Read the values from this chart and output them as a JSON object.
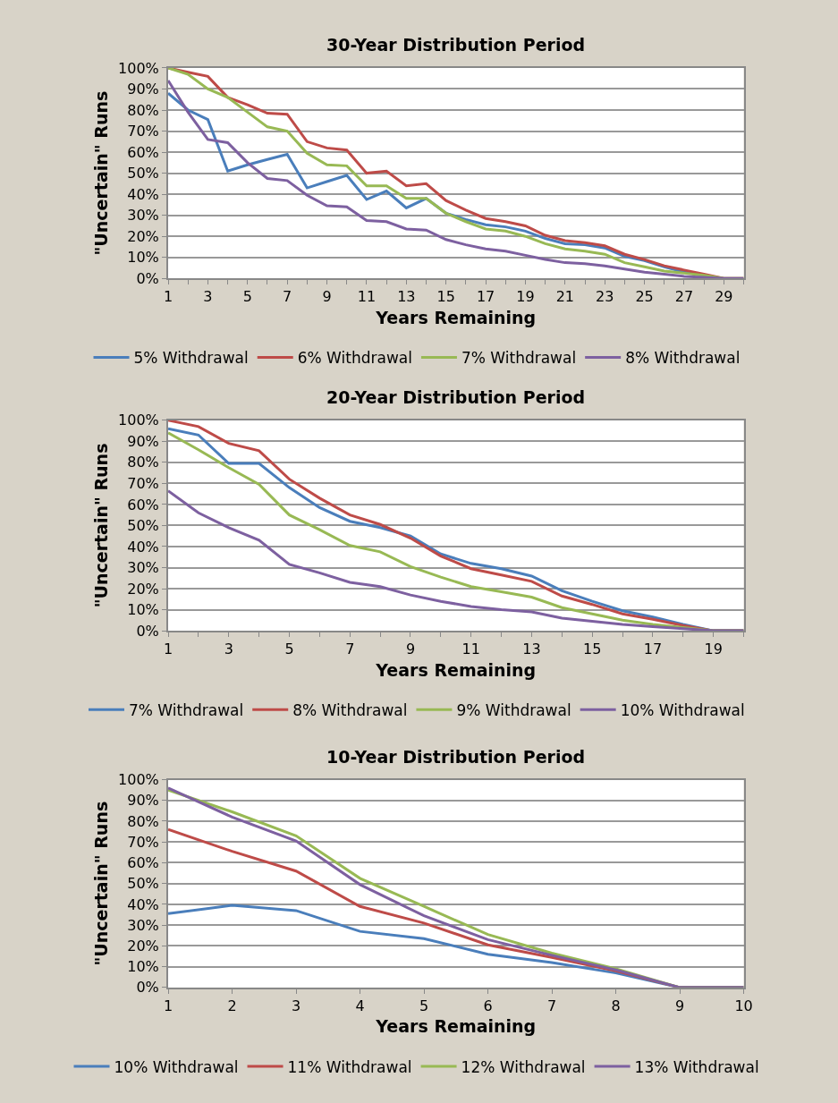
{
  "chart_data": [
    {
      "type": "line",
      "title": "30-Year Distribution Period",
      "xlabel": "Years Remaining",
      "ylabel": "\"Uncertain\" Runs",
      "x": [
        1,
        2,
        3,
        4,
        5,
        6,
        7,
        8,
        9,
        10,
        11,
        12,
        13,
        14,
        15,
        16,
        17,
        18,
        19,
        20,
        21,
        22,
        23,
        24,
        25,
        26,
        27,
        28,
        29,
        30
      ],
      "xlim": [
        1,
        30
      ],
      "xticks": [
        1,
        {
          "value": 2,
          "label": null
        },
        3,
        {
          "value": 4,
          "label": null
        },
        5,
        {
          "value": 6,
          "label": null
        },
        7,
        {
          "value": 8,
          "label": null
        },
        9,
        {
          "value": 10,
          "label": null
        },
        11,
        {
          "value": 12,
          "label": null
        },
        13,
        {
          "value": 14,
          "label": null
        },
        15,
        {
          "value": 16,
          "label": null
        },
        17,
        {
          "value": 18,
          "label": null
        },
        19,
        {
          "value": 20,
          "label": null
        },
        21,
        {
          "value": 22,
          "label": null
        },
        23,
        {
          "value": 24,
          "label": null
        },
        25,
        {
          "value": 26,
          "label": null
        },
        27,
        {
          "value": 28,
          "label": null
        },
        29,
        {
          "value": 30,
          "label": null
        }
      ],
      "ylim": [
        0,
        100
      ],
      "yticks": [
        {
          "value": 0,
          "label": "0%"
        },
        {
          "value": 10,
          "label": "10%"
        },
        {
          "value": 20,
          "label": "20%"
        },
        {
          "value": 30,
          "label": "30%"
        },
        {
          "value": 40,
          "label": "40%"
        },
        {
          "value": 50,
          "label": "50%"
        },
        {
          "value": 60,
          "label": "60%"
        },
        {
          "value": 70,
          "label": "70%"
        },
        {
          "value": 80,
          "label": "80%"
        },
        {
          "value": 90,
          "label": "90%"
        },
        {
          "value": 100,
          "label": "100%"
        }
      ],
      "grid": "y",
      "legend": "bottom",
      "series": [
        {
          "name": "5% Withdrawal",
          "color": "#4a7ebb",
          "values": [
            88,
            80,
            75.5,
            51,
            54,
            56.5,
            59,
            43,
            46,
            49,
            37.5,
            41.5,
            33.5,
            38,
            31,
            28,
            25.5,
            24.5,
            22.5,
            19,
            16.5,
            16,
            14.5,
            10.5,
            8.5,
            5.5,
            3,
            1.5,
            null,
            null
          ]
        },
        {
          "name": "6% Withdrawal",
          "color": "#be4b48",
          "values": [
            100,
            98,
            96,
            86,
            82.5,
            78.5,
            78,
            65,
            62,
            61,
            50,
            51,
            44,
            45,
            37,
            32.5,
            28.5,
            27,
            25,
            20.5,
            18,
            17,
            15.5,
            11.5,
            9,
            6,
            4,
            2,
            0,
            0
          ]
        },
        {
          "name": "7% Withdrawal",
          "color": "#98b954",
          "values": [
            100,
            97,
            90,
            86,
            79,
            72,
            70,
            59.5,
            54,
            53.5,
            44,
            44,
            38,
            38,
            31,
            27,
            23.5,
            22.5,
            20,
            16.5,
            14,
            13,
            11.5,
            7.5,
            5.5,
            3.5,
            2.5,
            1.5,
            0,
            0
          ]
        },
        {
          "name": "8% Withdrawal",
          "color": "#7d60a0",
          "values": [
            94,
            79,
            66,
            64.5,
            55,
            47.5,
            46.5,
            39.5,
            34.5,
            34,
            27.5,
            27,
            23.5,
            23,
            18.5,
            16,
            14,
            13,
            11,
            9,
            7.5,
            7,
            6,
            4.5,
            3,
            2,
            1,
            0.5,
            0,
            0
          ]
        }
      ]
    },
    {
      "type": "line",
      "title": "20-Year Distribution Period",
      "xlabel": "Years Remaining",
      "ylabel": "\"Uncertain\" Runs",
      "x": [
        1,
        2,
        3,
        4,
        5,
        6,
        7,
        8,
        9,
        10,
        11,
        12,
        13,
        14,
        15,
        16,
        17,
        18,
        19,
        20
      ],
      "xlim": [
        1,
        20
      ],
      "xticks": [
        1,
        {
          "value": 2,
          "label": null
        },
        3,
        {
          "value": 4,
          "label": null
        },
        5,
        {
          "value": 6,
          "label": null
        },
        7,
        {
          "value": 8,
          "label": null
        },
        9,
        {
          "value": 10,
          "label": null
        },
        11,
        {
          "value": 12,
          "label": null
        },
        13,
        {
          "value": 14,
          "label": null
        },
        15,
        {
          "value": 16,
          "label": null
        },
        17,
        {
          "value": 18,
          "label": null
        },
        19,
        {
          "value": 20,
          "label": null
        }
      ],
      "ylim": [
        0,
        100
      ],
      "yticks": [
        {
          "value": 0,
          "label": "0%"
        },
        {
          "value": 10,
          "label": "10%"
        },
        {
          "value": 20,
          "label": "20%"
        },
        {
          "value": 30,
          "label": "30%"
        },
        {
          "value": 40,
          "label": "40%"
        },
        {
          "value": 50,
          "label": "50%"
        },
        {
          "value": 60,
          "label": "60%"
        },
        {
          "value": 70,
          "label": "70%"
        },
        {
          "value": 80,
          "label": "80%"
        },
        {
          "value": 90,
          "label": "90%"
        },
        {
          "value": 100,
          "label": "100%"
        }
      ],
      "grid": "y",
      "legend": "bottom",
      "series": [
        {
          "name": "7% Withdrawal",
          "color": "#4a7ebb",
          "values": [
            96,
            93,
            79.5,
            79.5,
            68,
            58.5,
            52,
            49,
            45,
            36.5,
            32,
            29.5,
            26,
            19,
            14,
            9.5,
            6.5,
            3,
            0,
            0
          ]
        },
        {
          "name": "8% Withdrawal",
          "color": "#be4b48",
          "values": [
            100,
            97,
            89,
            85.5,
            72,
            63,
            55,
            50.5,
            44,
            35.5,
            29.5,
            26.5,
            23.5,
            16.5,
            12.5,
            8,
            5.5,
            2.5,
            0,
            0
          ]
        },
        {
          "name": "9% Withdrawal",
          "color": "#98b954",
          "values": [
            94,
            86,
            77.5,
            69.5,
            55,
            48,
            40.5,
            37.5,
            30.5,
            25.5,
            21,
            18.5,
            16,
            11,
            8,
            5,
            3,
            1.5,
            0,
            0
          ]
        },
        {
          "name": "10% Withdrawal",
          "color": "#7d60a0",
          "values": [
            66.5,
            56,
            49,
            43,
            31.5,
            27.5,
            23,
            21,
            17,
            14,
            11.5,
            10,
            9,
            6,
            4.5,
            3,
            2,
            1,
            0,
            0
          ]
        }
      ]
    },
    {
      "type": "line",
      "title": "10-Year Distribution Period",
      "xlabel": "Years Remaining",
      "ylabel": "\"Uncertain\" Runs",
      "x": [
        1,
        2,
        3,
        4,
        5,
        6,
        7,
        8,
        9,
        10
      ],
      "xlim": [
        1,
        10
      ],
      "xticks": [
        1,
        2,
        3,
        4,
        5,
        6,
        7,
        8,
        9,
        10
      ],
      "ylim": [
        0,
        100
      ],
      "yticks": [
        {
          "value": 0,
          "label": "0%"
        },
        {
          "value": 10,
          "label": "10%"
        },
        {
          "value": 20,
          "label": "20%"
        },
        {
          "value": 30,
          "label": "30%"
        },
        {
          "value": 40,
          "label": "40%"
        },
        {
          "value": 50,
          "label": "50%"
        },
        {
          "value": 60,
          "label": "60%"
        },
        {
          "value": 70,
          "label": "70%"
        },
        {
          "value": 80,
          "label": "80%"
        },
        {
          "value": 90,
          "label": "90%"
        },
        {
          "value": 100,
          "label": "100%"
        }
      ],
      "grid": "y",
      "legend": "bottom",
      "series": [
        {
          "name": "10% Withdrawal",
          "color": "#4a7ebb",
          "values": [
            35.5,
            39.5,
            37,
            27,
            23.5,
            16,
            12,
            7,
            0,
            0
          ]
        },
        {
          "name": "11% Withdrawal",
          "color": "#be4b48",
          "values": [
            76,
            65.5,
            56,
            39,
            31,
            20.5,
            14.5,
            8,
            0,
            0
          ]
        },
        {
          "name": "12% Withdrawal",
          "color": "#98b954",
          "values": [
            95,
            84.5,
            73,
            52.5,
            39,
            25.5,
            16.5,
            9,
            0,
            0
          ]
        },
        {
          "name": "13% Withdrawal",
          "color": "#7d60a0",
          "values": [
            96,
            82,
            70.5,
            49.5,
            34.5,
            23,
            15.5,
            8.5,
            0,
            0
          ]
        }
      ]
    }
  ]
}
